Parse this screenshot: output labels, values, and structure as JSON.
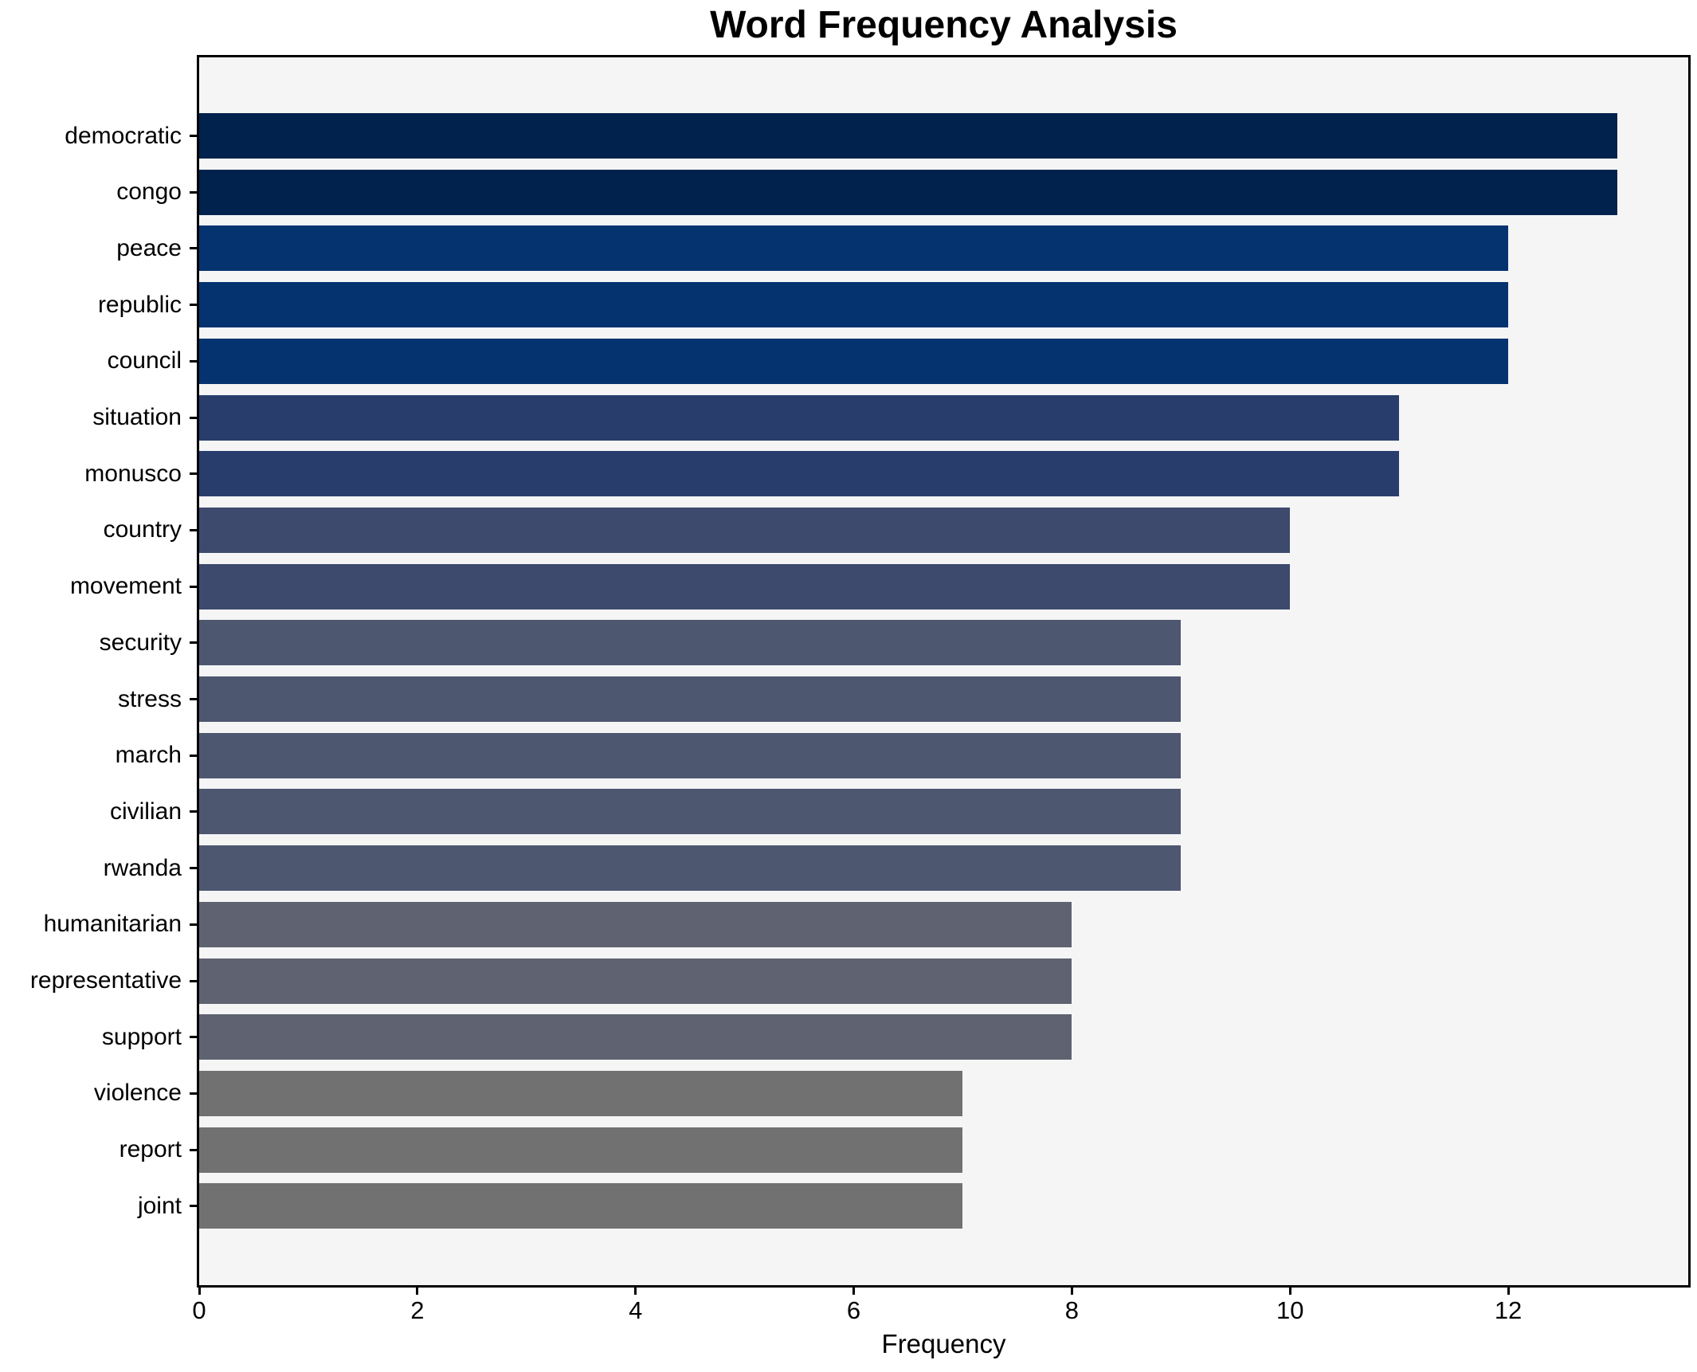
{
  "chart_data": {
    "type": "bar",
    "orientation": "horizontal",
    "title": "Word Frequency Analysis",
    "xlabel": "Frequency",
    "xlim": [
      0,
      13.65
    ],
    "xticks": [
      0,
      2,
      4,
      6,
      8,
      10,
      12
    ],
    "grid": false,
    "legend_position": "none",
    "plot_background": "#f5f5f6",
    "figure_background": "#ffffff",
    "spine_color": "#000000",
    "categories": [
      "democratic",
      "congo",
      "peace",
      "republic",
      "council",
      "situation",
      "monusco",
      "country",
      "movement",
      "security",
      "stress",
      "march",
      "civilian",
      "rwanda",
      "humanitarian",
      "representative",
      "support",
      "violence",
      "report",
      "joint"
    ],
    "values": [
      13,
      13,
      12,
      12,
      12,
      11,
      11,
      10,
      10,
      9,
      9,
      9,
      9,
      9,
      8,
      8,
      8,
      7,
      7,
      7
    ],
    "bar_colors": [
      "#01224c",
      "#01224c",
      "#04336f",
      "#04336f",
      "#04336f",
      "#283d6c",
      "#283d6c",
      "#3d4a6e",
      "#3d4a6e",
      "#4e5770",
      "#4e5770",
      "#4e5770",
      "#4e5770",
      "#4e5770",
      "#5f6270",
      "#5f6270",
      "#5f6270",
      "#717171",
      "#717171",
      "#717171"
    ]
  }
}
